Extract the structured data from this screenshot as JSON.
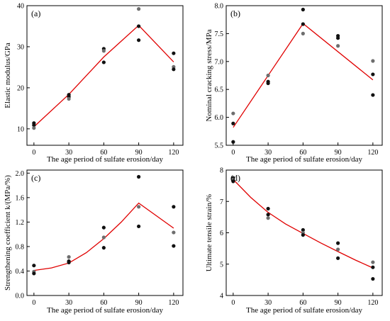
{
  "chart_data": [
    {
      "type": "scatter",
      "panel_label": "(a)",
      "xlabel": "The age period of sulfate erosion/day",
      "ylabel": "Elastic modulus/GPa",
      "x_ticks": [
        0,
        30,
        60,
        90,
        120
      ],
      "y_ticks": [
        10,
        20,
        30,
        40
      ],
      "xlim": [
        -6,
        128
      ],
      "ylim": [
        6,
        40
      ],
      "points": [
        {
          "x": 0,
          "y": 11.4,
          "shade": "dark"
        },
        {
          "x": 0,
          "y": 10.9,
          "shade": "dark"
        },
        {
          "x": 0,
          "y": 10.2,
          "shade": "gray"
        },
        {
          "x": 30,
          "y": 18.3,
          "shade": "dark"
        },
        {
          "x": 30,
          "y": 17.8,
          "shade": "dark"
        },
        {
          "x": 30,
          "y": 17.3,
          "shade": "gray"
        },
        {
          "x": 60,
          "y": 29.5,
          "shade": "dark"
        },
        {
          "x": 60,
          "y": 29.0,
          "shade": "gray"
        },
        {
          "x": 60,
          "y": 26.2,
          "shade": "dark"
        },
        {
          "x": 90,
          "y": 39.2,
          "shade": "gray"
        },
        {
          "x": 90,
          "y": 35.0,
          "shade": "dark"
        },
        {
          "x": 90,
          "y": 31.6,
          "shade": "dark"
        },
        {
          "x": 120,
          "y": 28.4,
          "shade": "dark"
        },
        {
          "x": 120,
          "y": 25.1,
          "shade": "gray"
        },
        {
          "x": 120,
          "y": 24.5,
          "shade": "dark"
        }
      ],
      "fit_line": {
        "x": [
          0,
          30,
          60,
          90,
          120
        ],
        "y": [
          10.5,
          18.4,
          27.5,
          35.2,
          26.3
        ]
      }
    },
    {
      "type": "scatter",
      "panel_label": "(b)",
      "xlabel": "The age period of sulfate erosion/day",
      "ylabel": "Nominal cracking stress/MPa",
      "x_ticks": [
        0,
        30,
        60,
        90,
        120
      ],
      "y_ticks": [
        5.5,
        6.0,
        6.5,
        7.0,
        7.5,
        8.0
      ],
      "y_tick_labels": [
        "5.5",
        "6.0",
        "6.5",
        "7.0",
        "7.5",
        "8.0"
      ],
      "xlim": [
        -6,
        128
      ],
      "ylim": [
        5.5,
        8.0
      ],
      "points": [
        {
          "x": 0,
          "y": 6.07,
          "shade": "gray"
        },
        {
          "x": 0,
          "y": 5.89,
          "shade": "dark"
        },
        {
          "x": 0,
          "y": 5.56,
          "shade": "dark"
        },
        {
          "x": 30,
          "y": 6.75,
          "shade": "gray"
        },
        {
          "x": 30,
          "y": 6.64,
          "shade": "dark"
        },
        {
          "x": 30,
          "y": 6.61,
          "shade": "dark"
        },
        {
          "x": 60,
          "y": 7.93,
          "shade": "dark"
        },
        {
          "x": 60,
          "y": 7.67,
          "shade": "dark"
        },
        {
          "x": 60,
          "y": 7.5,
          "shade": "gray"
        },
        {
          "x": 90,
          "y": 7.46,
          "shade": "dark"
        },
        {
          "x": 90,
          "y": 7.42,
          "shade": "dark"
        },
        {
          "x": 90,
          "y": 7.28,
          "shade": "gray"
        },
        {
          "x": 120,
          "y": 7.01,
          "shade": "gray"
        },
        {
          "x": 120,
          "y": 6.77,
          "shade": "dark"
        },
        {
          "x": 120,
          "y": 6.4,
          "shade": "dark"
        }
      ],
      "fit_line": {
        "x": [
          0,
          60,
          120
        ],
        "y": [
          5.82,
          7.68,
          6.67
        ]
      }
    },
    {
      "type": "scatter",
      "panel_label": "(c)",
      "xlabel": "The age period of sulfate erosion/day",
      "ylabel": "Strengthening coefficient k/(MPa/%)",
      "x_ticks": [
        0,
        30,
        60,
        90,
        120
      ],
      "y_ticks": [
        0.0,
        0.4,
        0.8,
        1.2,
        1.6,
        2.0
      ],
      "y_tick_labels": [
        "0.0",
        "0.4",
        "0.8",
        "1.2",
        "1.6",
        "2.0"
      ],
      "xlim": [
        -6,
        128
      ],
      "ylim": [
        0.0,
        2.05
      ],
      "points": [
        {
          "x": 0,
          "y": 0.49,
          "shade": "dark"
        },
        {
          "x": 0,
          "y": 0.39,
          "shade": "gray"
        },
        {
          "x": 0,
          "y": 0.36,
          "shade": "dark"
        },
        {
          "x": 30,
          "y": 0.63,
          "shade": "gray"
        },
        {
          "x": 30,
          "y": 0.56,
          "shade": "dark"
        },
        {
          "x": 30,
          "y": 0.54,
          "shade": "dark"
        },
        {
          "x": 60,
          "y": 1.11,
          "shade": "dark"
        },
        {
          "x": 60,
          "y": 0.95,
          "shade": "gray"
        },
        {
          "x": 60,
          "y": 0.78,
          "shade": "dark"
        },
        {
          "x": 90,
          "y": 1.94,
          "shade": "dark"
        },
        {
          "x": 90,
          "y": 1.45,
          "shade": "gray"
        },
        {
          "x": 90,
          "y": 1.13,
          "shade": "dark"
        },
        {
          "x": 120,
          "y": 1.45,
          "shade": "dark"
        },
        {
          "x": 120,
          "y": 1.03,
          "shade": "gray"
        },
        {
          "x": 120,
          "y": 0.81,
          "shade": "dark"
        }
      ],
      "fit_line": {
        "x": [
          0,
          15,
          30,
          45,
          60,
          75,
          90,
          120
        ],
        "y": [
          0.41,
          0.45,
          0.53,
          0.7,
          0.93,
          1.2,
          1.51,
          1.1
        ]
      }
    },
    {
      "type": "scatter",
      "panel_label": "(d)",
      "xlabel": "The age period of sulfate erosion/day",
      "ylabel": "Ultimate tensile strain/%",
      "x_ticks": [
        0,
        30,
        60,
        90,
        120
      ],
      "y_ticks": [
        4,
        5,
        6,
        7,
        8
      ],
      "xlim": [
        -6,
        128
      ],
      "ylim": [
        4,
        8
      ],
      "points": [
        {
          "x": 0,
          "y": 7.75,
          "shade": "dark"
        },
        {
          "x": 0,
          "y": 7.7,
          "shade": "gray"
        },
        {
          "x": 0,
          "y": 7.64,
          "shade": "dark"
        },
        {
          "x": 30,
          "y": 6.77,
          "shade": "dark"
        },
        {
          "x": 30,
          "y": 6.58,
          "shade": "dark"
        },
        {
          "x": 30,
          "y": 6.47,
          "shade": "gray"
        },
        {
          "x": 60,
          "y": 6.09,
          "shade": "dark"
        },
        {
          "x": 60,
          "y": 6.0,
          "shade": "gray"
        },
        {
          "x": 60,
          "y": 5.93,
          "shade": "dark"
        },
        {
          "x": 90,
          "y": 5.67,
          "shade": "dark"
        },
        {
          "x": 90,
          "y": 5.47,
          "shade": "gray"
        },
        {
          "x": 90,
          "y": 5.19,
          "shade": "dark"
        },
        {
          "x": 120,
          "y": 5.06,
          "shade": "gray"
        },
        {
          "x": 120,
          "y": 4.9,
          "shade": "dark"
        },
        {
          "x": 120,
          "y": 4.53,
          "shade": "dark"
        }
      ],
      "fit_line": {
        "x": [
          0,
          15,
          30,
          45,
          60,
          75,
          90,
          105,
          120
        ],
        "y": [
          7.7,
          7.13,
          6.65,
          6.28,
          5.98,
          5.68,
          5.4,
          5.13,
          4.88
        ]
      }
    }
  ],
  "colors": {
    "dark_point": "#111111",
    "gray_point": "#6e6e6e",
    "fit_line": "#e00000",
    "axis": "#000000"
  }
}
